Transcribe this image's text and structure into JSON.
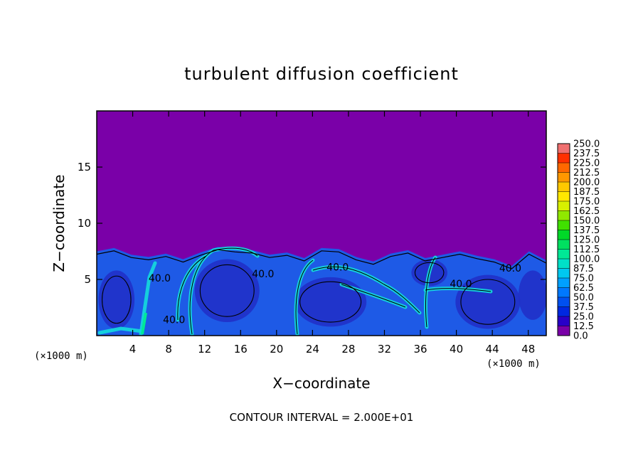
{
  "chart_data": {
    "type": "heatmap",
    "title": "turbulent diffusion coefficient",
    "xlabel": "X−coordinate",
    "ylabel": "Z−coordinate",
    "x_unit_label_left": "(×1000 m)",
    "x_unit_label_right": "(×1000 m)",
    "xlim": [
      0,
      50
    ],
    "ylim": [
      0,
      20
    ],
    "x_ticks": [
      4,
      8,
      12,
      16,
      20,
      24,
      28,
      32,
      36,
      40,
      44,
      48
    ],
    "y_ticks": [
      5,
      10,
      15
    ],
    "contour_interval_text": "CONTOUR INTERVAL = 2.000E+01",
    "contour_labels": [
      {
        "text": "40.0",
        "x": 7.0,
        "y": 4.8
      },
      {
        "text": "40.0",
        "x": 8.6,
        "y": 1.1
      },
      {
        "text": "40.0",
        "x": 18.5,
        "y": 5.2
      },
      {
        "text": "40.0",
        "x": 26.8,
        "y": 5.8
      },
      {
        "text": "40.0",
        "x": 40.5,
        "y": 4.3
      },
      {
        "text": "40.0",
        "x": 46.0,
        "y": 5.7
      }
    ],
    "colorbar": {
      "levels": [
        "0.0",
        "12.5",
        "25.0",
        "37.5",
        "50.0",
        "62.5",
        "75.0",
        "87.5",
        "100.0",
        "112.5",
        "125.0",
        "137.5",
        "150.0",
        "162.5",
        "175.0",
        "187.5",
        "200.0",
        "212.5",
        "225.0",
        "237.5",
        "250.0"
      ],
      "colors": [
        "#7a00a8",
        "#2800c8",
        "#0028e0",
        "#0050f0",
        "#0078ff",
        "#00a0ff",
        "#00c8f0",
        "#00e0c8",
        "#00e896",
        "#00e060",
        "#00d828",
        "#40e000",
        "#90e800",
        "#d8f000",
        "#ffe800",
        "#ffc800",
        "#ff9800",
        "#ff6800",
        "#ff3000",
        "#f07070"
      ]
    },
    "field": {
      "background_color": "#7a00a8",
      "boundary_layer_color": "#1e5ae6",
      "eddy_core_color": "#2030c8",
      "streak_color": "#14dcdc",
      "max_color": "#00e896",
      "boundary_top_z": [
        7.5,
        7.8,
        7.2,
        7.0,
        7.3,
        6.8,
        7.4,
        7.9,
        7.7,
        7.6,
        7.2,
        7.4,
        6.9,
        7.8,
        7.7,
        7.0,
        6.6,
        7.3,
        7.6,
        6.9,
        7.2,
        7.5,
        7.1,
        6.8,
        6.2,
        7.5,
        6.7
      ]
    }
  }
}
